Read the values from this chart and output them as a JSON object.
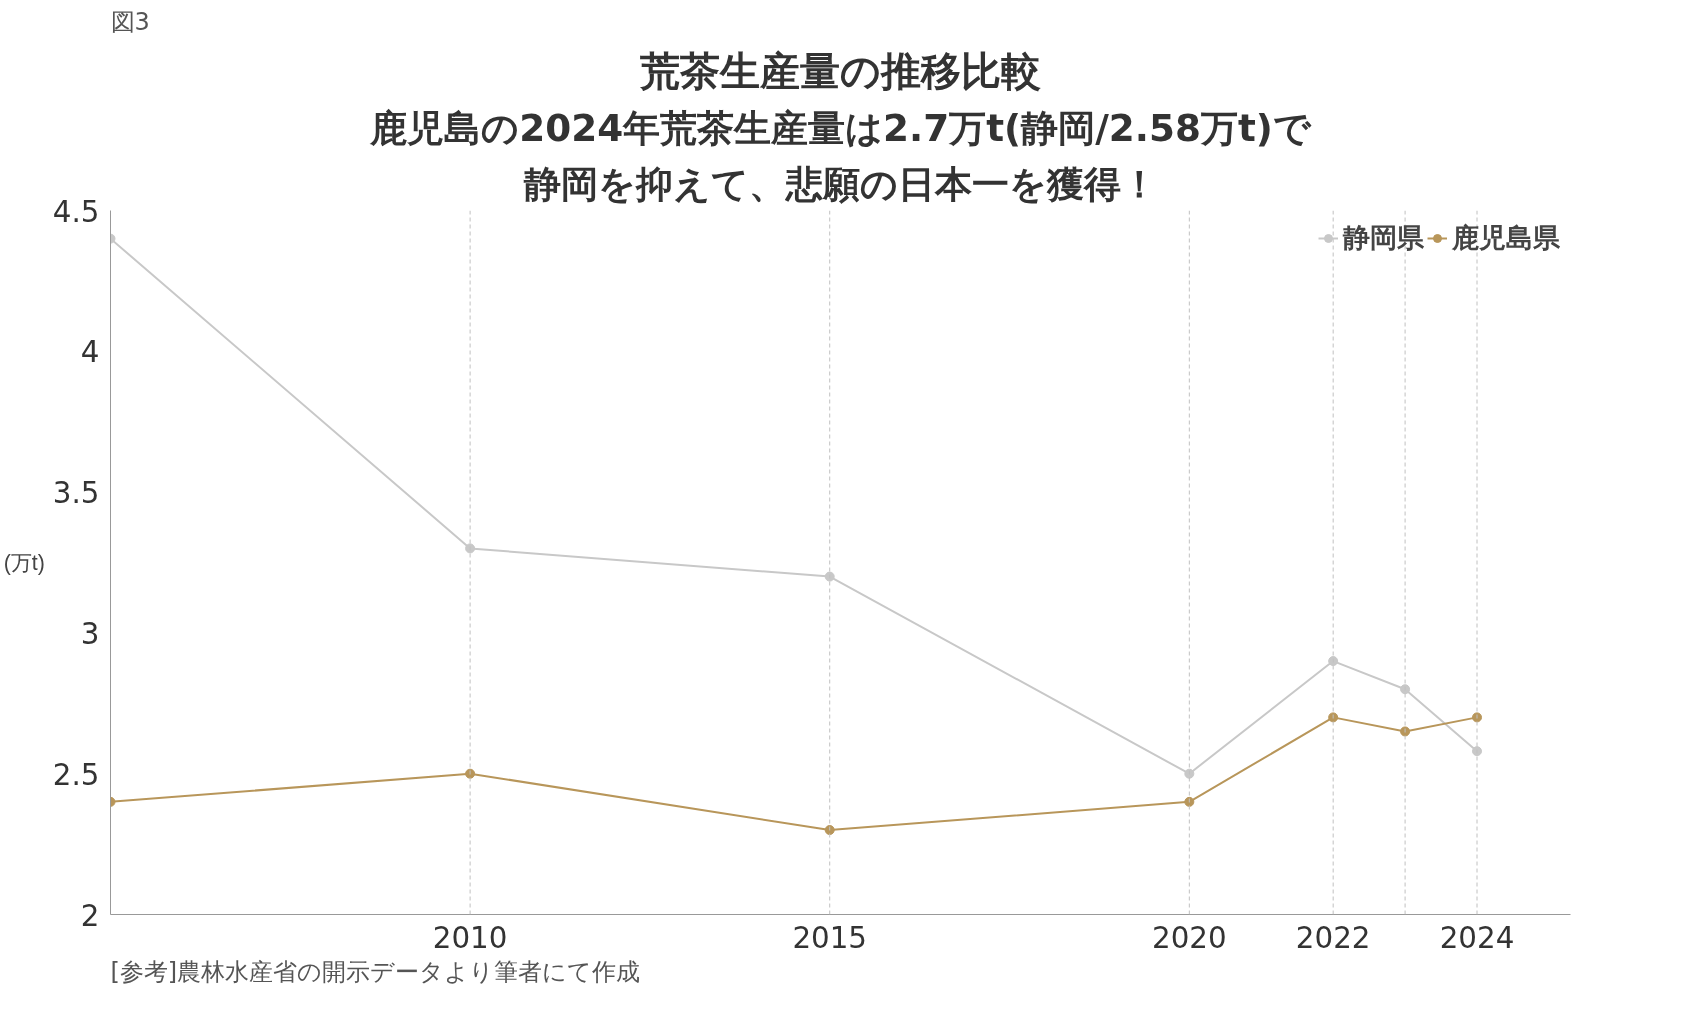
{
  "chart_data": {
    "type": "line",
    "title": "荒茶生産量の推移比較",
    "subtitle": [
      "鹿児島の2024年荒茶生産量は2.7万t(静岡/2.58万t)で",
      "静岡を抑えて、悲願の日本一を獲得！"
    ],
    "ylabel": "(万t)",
    "annotations": [
      "図3",
      "[参考]農林水産省の開示データより筆者にて作成"
    ],
    "x": [
      2005,
      2010,
      2015,
      2020,
      2022,
      2023,
      2024
    ],
    "series": [
      {
        "name": "静岡県",
        "color": "#c8c8c8",
        "values": [
          4.4,
          3.3,
          3.2,
          2.5,
          2.9,
          2.8,
          2.58
        ]
      },
      {
        "name": "鹿児島県",
        "color": "#b8965a",
        "values": [
          2.4,
          2.5,
          2.3,
          2.4,
          2.7,
          2.65,
          2.7
        ]
      }
    ],
    "xlim": [
      2005,
      2025.3
    ],
    "xticks": [
      2010,
      2015,
      2020,
      2022,
      2024
    ],
    "ylim": [
      2,
      4.5
    ],
    "yticks": [
      2,
      2.5,
      3,
      3.5,
      4,
      4.5
    ],
    "ref_lines": [
      {
        "axis": "x",
        "value": 2010,
        "color": "#c0c0c0",
        "line_style": "dashed"
      },
      {
        "axis": "x",
        "value": 2015,
        "color": "#c0c0c0",
        "line_style": "dashed"
      },
      {
        "axis": "x",
        "value": 2020,
        "color": "#c0c0c0",
        "line_style": "dashed"
      },
      {
        "axis": "x",
        "value": 2022,
        "color": "#c0c0c0",
        "line_style": "dashed"
      },
      {
        "axis": "x",
        "value": 2023,
        "color": "#c0c0c0",
        "line_style": "dashed"
      },
      {
        "axis": "x",
        "value": 2024,
        "color": "#c0c0c0",
        "line_style": "dashed"
      }
    ],
    "grid": false,
    "legend": "top right",
    "marker": "circle",
    "line_style": "solid"
  }
}
